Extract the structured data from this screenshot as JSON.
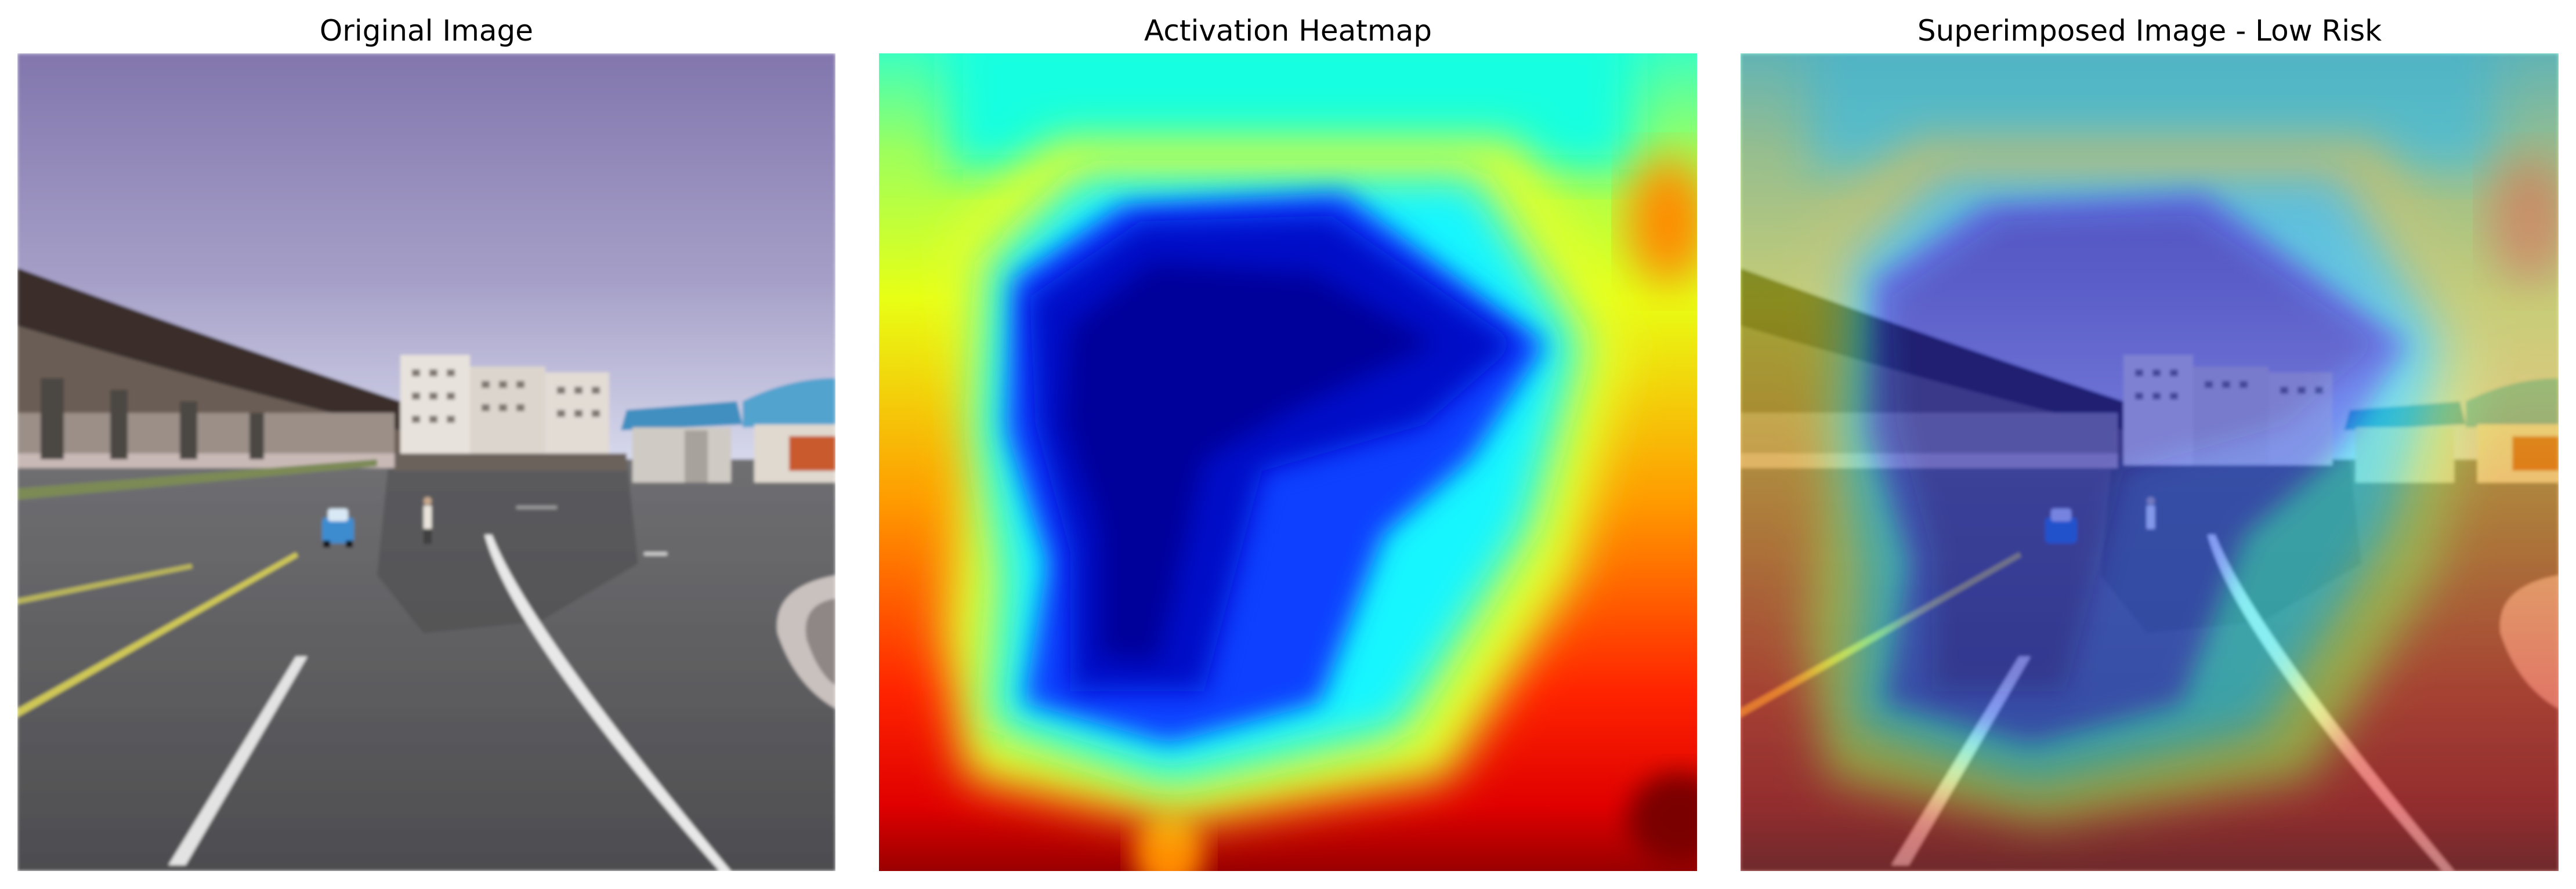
{
  "figure": {
    "panels": [
      {
        "title": "Original Image"
      },
      {
        "title": "Activation Heatmap"
      },
      {
        "title": "Superimposed Image - Low Risk"
      }
    ]
  },
  "colors": {
    "background": "#ffffff",
    "title_text": "#000000",
    "sky_top": "#8276ad",
    "sky_bottom": "#cfd0e8",
    "road": "#5b5b5e",
    "lane_white": "#e6e6e6",
    "lane_yellow": "#c9c44a",
    "heat_low": "#00008f",
    "heat_mid": "#00ffff",
    "heat_high": "#ff0000",
    "heat_peak": "#800000"
  }
}
